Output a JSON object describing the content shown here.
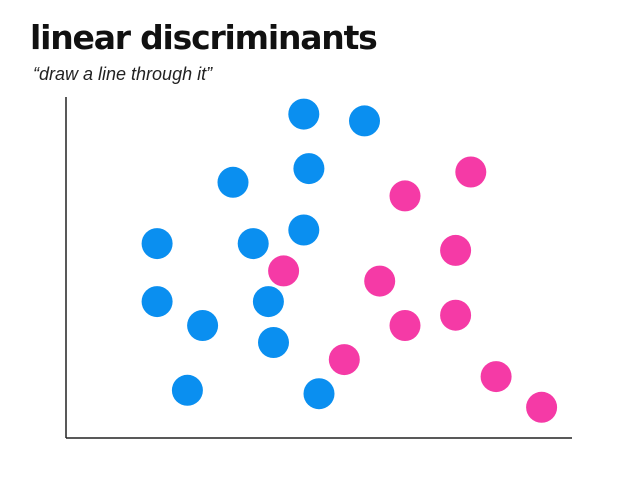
{
  "slide": {
    "title": "linear discriminants",
    "subtitle": "“draw a line through it”"
  },
  "chart_data": {
    "type": "scatter",
    "title": "linear discriminants",
    "subtitle": "“draw a line through it”",
    "xlabel": "",
    "ylabel": "",
    "xlim": [
      0,
      100
    ],
    "ylim": [
      0,
      100
    ],
    "grid": false,
    "axis_ticks": false,
    "legend": "none",
    "series": [
      {
        "name": "blue",
        "color": "#0a8ff0",
        "points": [
          {
            "x": 47,
            "y": 95
          },
          {
            "x": 59,
            "y": 93
          },
          {
            "x": 48,
            "y": 79
          },
          {
            "x": 33,
            "y": 75
          },
          {
            "x": 47,
            "y": 61
          },
          {
            "x": 18,
            "y": 57
          },
          {
            "x": 37,
            "y": 57
          },
          {
            "x": 18,
            "y": 40
          },
          {
            "x": 40,
            "y": 40
          },
          {
            "x": 27,
            "y": 33
          },
          {
            "x": 41,
            "y": 28
          },
          {
            "x": 24,
            "y": 14
          },
          {
            "x": 50,
            "y": 13
          }
        ]
      },
      {
        "name": "pink",
        "color": "#f53aa6",
        "points": [
          {
            "x": 80,
            "y": 78
          },
          {
            "x": 67,
            "y": 71
          },
          {
            "x": 77,
            "y": 55
          },
          {
            "x": 43,
            "y": 49
          },
          {
            "x": 62,
            "y": 46
          },
          {
            "x": 77,
            "y": 36
          },
          {
            "x": 67,
            "y": 33
          },
          {
            "x": 55,
            "y": 23
          },
          {
            "x": 85,
            "y": 18
          },
          {
            "x": 94,
            "y": 9
          }
        ]
      }
    ]
  }
}
